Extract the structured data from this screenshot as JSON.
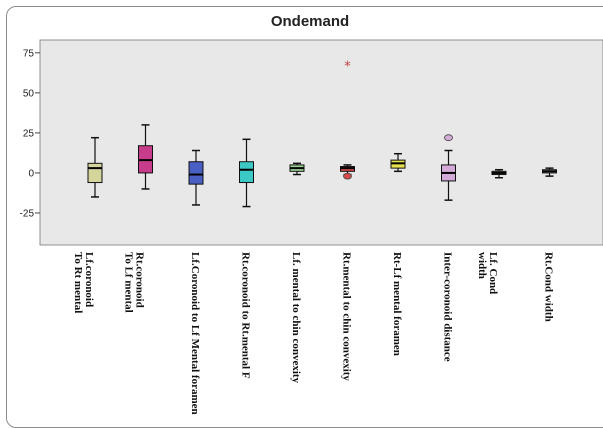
{
  "chart_data": {
    "type": "box",
    "title": "Ondemand",
    "xlabel": "",
    "ylabel": "",
    "ylim": [
      -45,
      83
    ],
    "yticks": [
      75,
      50,
      25,
      0,
      -25
    ],
    "grid": false,
    "categories": [
      [
        "Lf.coronoid",
        "To Rt mental"
      ],
      [
        "Rt.coronoid",
        "To Lf mental"
      ],
      [
        "Lf.Coronoid to Lf Mental foramen"
      ],
      [
        "Rt.coronoid  to Rt.mental F"
      ],
      [
        "Lf. mental to chin convexity"
      ],
      [
        "Rt.mental to chin convexity"
      ],
      [
        "Rt-Lf mental foramen"
      ],
      [
        "Inter-coronoid distance"
      ],
      [
        "Lf. Cond",
        "width"
      ],
      [
        "Rt.Cond width"
      ]
    ],
    "boxes": [
      {
        "min": -15,
        "q1": -6,
        "median": 3,
        "q3": 6,
        "max": 22,
        "color": "#d4d59a",
        "outliers": []
      },
      {
        "min": -10,
        "q1": 0,
        "median": 8,
        "q3": 17,
        "max": 30,
        "color": "#c83c8c",
        "outliers": []
      },
      {
        "min": -20,
        "q1": -7,
        "median": -1,
        "q3": 7,
        "max": 14,
        "color": "#4a5fc4",
        "outliers": []
      },
      {
        "min": -21,
        "q1": -6,
        "median": 2,
        "q3": 7,
        "max": 21,
        "color": "#3cc8c4",
        "outliers": []
      },
      {
        "min": -1,
        "q1": 1,
        "median": 3,
        "q3": 5,
        "max": 6,
        "color": "#9fd49a",
        "outliers": []
      },
      {
        "min": -1,
        "q1": 1,
        "median": 3,
        "q3": 4,
        "max": 5,
        "color": "#d44a4a",
        "outliers": [
          {
            "value": -2,
            "marker": "circle"
          },
          {
            "value": 67,
            "marker": "star"
          }
        ]
      },
      {
        "min": 1,
        "q1": 3,
        "median": 6,
        "q3": 8,
        "max": 12,
        "color": "#e6e04a",
        "outliers": []
      },
      {
        "min": -17,
        "q1": -5,
        "median": 0,
        "q3": 5,
        "max": 14,
        "color": "#d4aad8",
        "outliers": [
          {
            "value": 22,
            "marker": "circle"
          }
        ]
      },
      {
        "min": -3,
        "q1": -1,
        "median": 0,
        "q3": 1,
        "max": 2,
        "color": "#c8b48c",
        "outliers": []
      },
      {
        "min": -2,
        "q1": 0,
        "median": 1,
        "q3": 2,
        "max": 3,
        "color": "#e0e0e0",
        "outliers": []
      }
    ],
    "colors": {
      "plot_background": "#e8e8e8",
      "outlier_star": "#c04040",
      "outlier_circle_fill": "#d4aad8"
    }
  }
}
